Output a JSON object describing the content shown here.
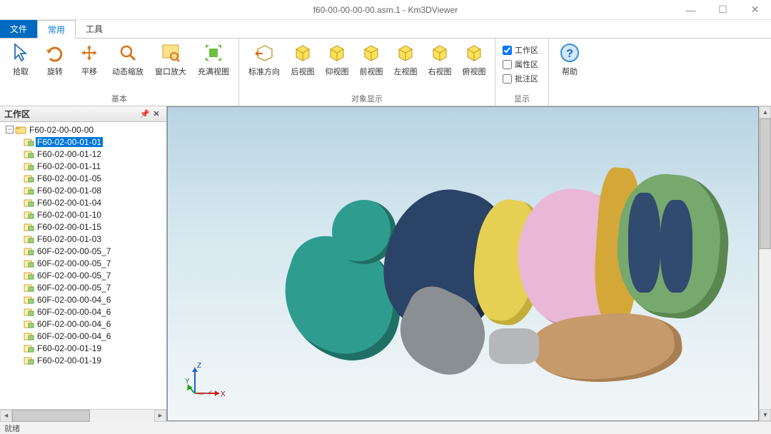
{
  "window": {
    "title": "f60-00-00-00-00.asm.1 - Km3DViewer"
  },
  "menu": {
    "file": "文件",
    "common": "常用",
    "tools": "工具"
  },
  "ribbon": {
    "basic": {
      "label": "基本",
      "pick": "拾取",
      "rotate": "旋转",
      "pan": "平移",
      "zoom": "动态缩放",
      "window_zoom": "窗口放大",
      "fit": "充满视图"
    },
    "view": {
      "label": "对象显示",
      "std": "标准方向",
      "back": "后视图",
      "bottom": "仰视图",
      "front": "前视图",
      "left": "左视图",
      "right": "右视图",
      "top": "俯视图"
    },
    "display": {
      "label": "显示",
      "workspace": "工作区",
      "workspace_checked": true,
      "attr": "属性区",
      "attr_checked": false,
      "annot": "批注区",
      "annot_checked": false
    },
    "help": {
      "label": "帮助"
    }
  },
  "panel": {
    "title": "工作区"
  },
  "tree": {
    "root": "F60-02-00-00-00",
    "items": [
      {
        "label": "F60-02-00-01-01",
        "selected": true
      },
      {
        "label": "F60-02-00-01-12"
      },
      {
        "label": "F60-02-00-01-11"
      },
      {
        "label": "F60-02-00-01-05"
      },
      {
        "label": "F60-02-00-01-08"
      },
      {
        "label": "F60-02-00-01-04"
      },
      {
        "label": "F60-02-00-01-10"
      },
      {
        "label": "F60-02-00-01-15"
      },
      {
        "label": "F60-02-00-01-03"
      },
      {
        "label": "60F-02-00-00-05_7"
      },
      {
        "label": "60F-02-00-00-05_7"
      },
      {
        "label": "60F-02-00-00-05_7"
      },
      {
        "label": "60F-02-00-00-05_7"
      },
      {
        "label": "60F-02-00-00-04_6"
      },
      {
        "label": "60F-02-00-00-04_6"
      },
      {
        "label": "60F-02-00-00-04_6"
      },
      {
        "label": "60F-02-00-00-04_6"
      },
      {
        "label": "F60-02-00-01-19"
      },
      {
        "label": "F60-02-00-01-19"
      }
    ]
  },
  "status": {
    "text": "就绪"
  },
  "colors": {
    "accent": "#006ac1",
    "select": "#0078d7",
    "viewport_top": "#b8d4e3",
    "viewport_bottom": "#f2f6f8",
    "model": {
      "teal": "#2e9d8f",
      "navy": "#2b4366",
      "yellow": "#e6d053",
      "pink": "#e9b8d6",
      "gold": "#d4a838",
      "green": "#77a86e",
      "tan": "#c79a6b",
      "gray": "#8a8f94"
    }
  },
  "axis": {
    "x": "X",
    "y": "Y",
    "z": "Z"
  }
}
